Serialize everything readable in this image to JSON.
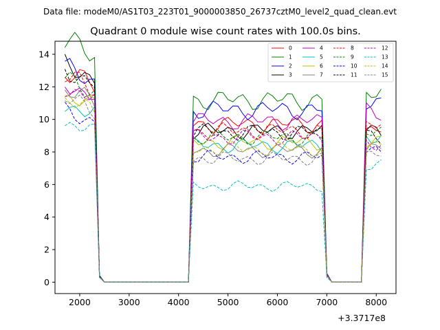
{
  "figure": {
    "suptitle": "Data file: modeM0/AS1T03_223T01_9000003850_26737cztM0_level2_quad_clean.evt",
    "axis_offset_label": "+3.3717e8"
  },
  "chart_data": {
    "type": "line",
    "title": "Quadrant 0 module wise count rates with 100.0s bins.",
    "xlabel": "",
    "ylabel": "",
    "xlim": [
      1500,
      8400
    ],
    "ylim": [
      -0.7,
      14.8
    ],
    "x_offset": 337170000,
    "xticks": [
      2000,
      3000,
      4000,
      5000,
      6000,
      7000,
      8000
    ],
    "yticks": [
      0,
      2,
      4,
      6,
      8,
      10,
      12,
      14
    ],
    "grid": false,
    "legend": {
      "placement": "top-right",
      "columns": 4
    },
    "segments": [
      {
        "start": 1700,
        "end": 2400
      },
      {
        "start": 4300,
        "end": 7000
      },
      {
        "start": 7800,
        "end": 8100
      }
    ],
    "series": [
      {
        "name": "0",
        "color": "#ff0000",
        "dash": "solid",
        "levels": [
          12.2,
          9.7,
          9.4
        ]
      },
      {
        "name": "1",
        "color": "#008000",
        "dash": "solid",
        "levels": [
          14.1,
          11.2,
          11.5
        ]
      },
      {
        "name": "2",
        "color": "#0000ff",
        "dash": "solid",
        "levels": [
          12.5,
          10.6,
          10.8
        ]
      },
      {
        "name": "3",
        "color": "#000000",
        "dash": "solid",
        "levels": [
          12.7,
          9.3,
          9.2
        ]
      },
      {
        "name": "4",
        "color": "#bf00bf",
        "dash": "solid",
        "levels": [
          11.6,
          9.9,
          10.5
        ]
      },
      {
        "name": "5",
        "color": "#00bfbf",
        "dash": "solid",
        "levels": [
          10.4,
          8.4,
          9.0
        ]
      },
      {
        "name": "6",
        "color": "#bfbf00",
        "dash": "solid",
        "levels": [
          10.9,
          8.6,
          8.8
        ]
      },
      {
        "name": "7",
        "color": "#808080",
        "dash": "solid",
        "levels": [
          11.2,
          8.1,
          8.3
        ]
      },
      {
        "name": "8",
        "color": "#ff0000",
        "dash": "dashed",
        "levels": [
          12.0,
          9.3,
          9.6
        ]
      },
      {
        "name": "9",
        "color": "#008000",
        "dash": "dashed",
        "levels": [
          11.8,
          8.9,
          9.1
        ]
      },
      {
        "name": "10",
        "color": "#0000ff",
        "dash": "dashed",
        "levels": [
          10.0,
          7.7,
          8.0
        ]
      },
      {
        "name": "11",
        "color": "#000000",
        "dash": "dashed",
        "levels": [
          12.4,
          9.2,
          9.0
        ]
      },
      {
        "name": "12",
        "color": "#bf00bf",
        "dash": "dashed",
        "levels": [
          11.4,
          8.9,
          8.6
        ]
      },
      {
        "name": "13",
        "color": "#00bfbf",
        "dash": "dashed",
        "levels": [
          9.3,
          5.9,
          7.3
        ]
      },
      {
        "name": "14",
        "color": "#bfbf00",
        "dash": "dashed",
        "levels": [
          10.6,
          8.2,
          8.4
        ]
      },
      {
        "name": "15",
        "color": "#808080",
        "dash": "dashed",
        "levels": [
          10.7,
          7.6,
          7.8
        ]
      }
    ]
  }
}
